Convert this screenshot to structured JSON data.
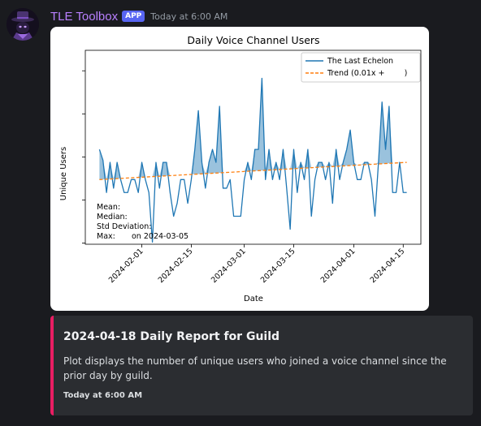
{
  "message": {
    "username": "TLE Toolbox",
    "badge": "APP",
    "timestamp": "Today at 6:00 AM",
    "avatar_icon": "detective-hat-avatar"
  },
  "chart_data": {
    "type": "line",
    "title": "Daily Voice Channel Users",
    "xlabel": "Date",
    "ylabel": "Unique Users",
    "x_start": "2024-01-20",
    "x_end": "2024-04-18",
    "xlim": [
      "2024-01-16",
      "2024-04-20"
    ],
    "ylim": [
      0,
      9
    ],
    "x_ticks": [
      "2024-02-01",
      "2024-02-15",
      "2024-03-01",
      "2024-03-15",
      "2024-04-01",
      "2024-04-15"
    ],
    "legend": {
      "placement": "top-right",
      "entries": [
        "The Last Echelon",
        "Trend (0.01x +        )"
      ]
    },
    "series": [
      {
        "name": "The Last Echelon",
        "color": "#1f77b4",
        "values": [
          4.4,
          3.9,
          2.4,
          3.8,
          2.6,
          3.8,
          3.0,
          2.4,
          2.4,
          3.0,
          3.0,
          2.4,
          3.8,
          3.0,
          2.4,
          0.1,
          3.8,
          2.6,
          3.8,
          3.8,
          2.4,
          1.3,
          1.9,
          3.0,
          3.0,
          1.9,
          3.0,
          4.4,
          6.2,
          3.8,
          2.6,
          3.8,
          4.4,
          3.8,
          6.4,
          2.6,
          2.6,
          3.0,
          1.3,
          1.3,
          1.3,
          3.0,
          3.8,
          3.0,
          4.4,
          4.4,
          7.7,
          3.0,
          4.4,
          3.0,
          3.8,
          3.0,
          4.4,
          2.6,
          0.7,
          4.4,
          2.4,
          3.8,
          3.0,
          4.4,
          1.3,
          3.0,
          3.8,
          3.8,
          3.0,
          3.8,
          1.9,
          4.4,
          3.0,
          3.8,
          4.4,
          5.3,
          3.8,
          3.0,
          3.0,
          3.8,
          3.8,
          3.0,
          1.3,
          3.8,
          6.6,
          4.4,
          6.4,
          2.4,
          2.4,
          3.8,
          2.4,
          2.4
        ]
      },
      {
        "name": "Trend (0.01x +        )",
        "color": "#ff7f0e",
        "style": "dashed",
        "trend_start": 3.0,
        "trend_end": 3.8
      }
    ],
    "stats": {
      "mean_label": "Mean:",
      "median_label": "Median:",
      "std_label": "Std Deviation:",
      "max_label": "Max:",
      "max_date_text": "on 2024-03-05"
    }
  },
  "embed": {
    "accent_color": "#e91e63",
    "title": "2024-04-18 Daily Report for Guild",
    "description": "Plot displays the number of unique users who joined a voice channel since the prior day by guild.",
    "footer": "Today at 6:00 AM"
  }
}
